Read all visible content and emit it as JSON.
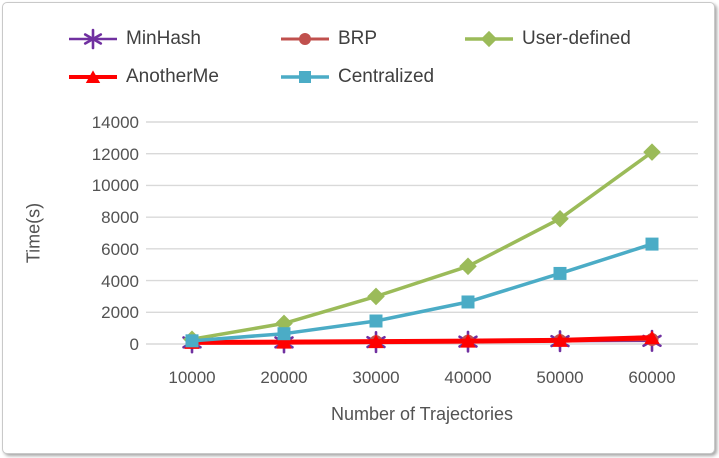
{
  "chart_data": {
    "type": "line",
    "title": "",
    "xlabel": "Number of Trajectories",
    "ylabel": "Time(s)",
    "categories": [
      "10000",
      "20000",
      "30000",
      "40000",
      "50000",
      "60000"
    ],
    "yticks": [
      0,
      2000,
      4000,
      6000,
      8000,
      10000,
      12000,
      14000
    ],
    "ylim": [
      0,
      14000
    ],
    "grid": "horizontal",
    "gridline_color": "#d9d9d9",
    "legend_position": "top-left, two rows",
    "text_color": "#535353",
    "series": [
      {
        "name": "MinHash",
        "color": "#7030a0",
        "marker": "star6",
        "line_width": 2.5,
        "values": [
          100,
          100,
          120,
          150,
          180,
          200
        ]
      },
      {
        "name": "BRP",
        "color": "#c0504d",
        "marker": "circle",
        "line_width": 3,
        "values": [
          120,
          130,
          150,
          180,
          220,
          280
        ]
      },
      {
        "name": "User-defined",
        "color": "#9bbb59",
        "marker": "diamond",
        "line_width": 3.5,
        "values": [
          300,
          1300,
          3000,
          4900,
          7900,
          12100
        ]
      },
      {
        "name": "AnotherMe",
        "color": "#ff0000",
        "marker": "triangle",
        "line_width": 5,
        "values": [
          100,
          120,
          150,
          180,
          230,
          400
        ]
      },
      {
        "name": "Centralized",
        "color": "#4bacc6",
        "marker": "square",
        "line_width": 3.5,
        "values": [
          200,
          650,
          1450,
          2650,
          4450,
          6300
        ]
      }
    ]
  }
}
